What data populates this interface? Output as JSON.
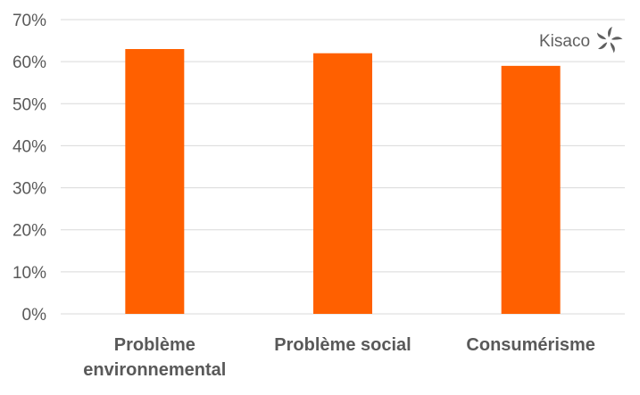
{
  "chart_data": {
    "type": "bar",
    "categories": [
      "Problème environnemental",
      "Problème social",
      "Consumérisme"
    ],
    "category_lines": [
      [
        "Problème",
        "environnemental"
      ],
      [
        "Problème social"
      ],
      [
        "Consumérisme"
      ]
    ],
    "values": [
      63,
      62,
      59
    ],
    "ylim": [
      0,
      70
    ],
    "yticks": [
      "0%",
      "10%",
      "20%",
      "30%",
      "40%",
      "50%",
      "60%",
      "70%"
    ],
    "grid": true,
    "bar_color": "#FF6000",
    "gridline_color": "#D9D9D9",
    "title": "",
    "xlabel": "",
    "ylabel": ""
  },
  "logo": {
    "text": "Kisaco",
    "icon": "pinwheel-icon",
    "color": "#5f5f5f"
  }
}
